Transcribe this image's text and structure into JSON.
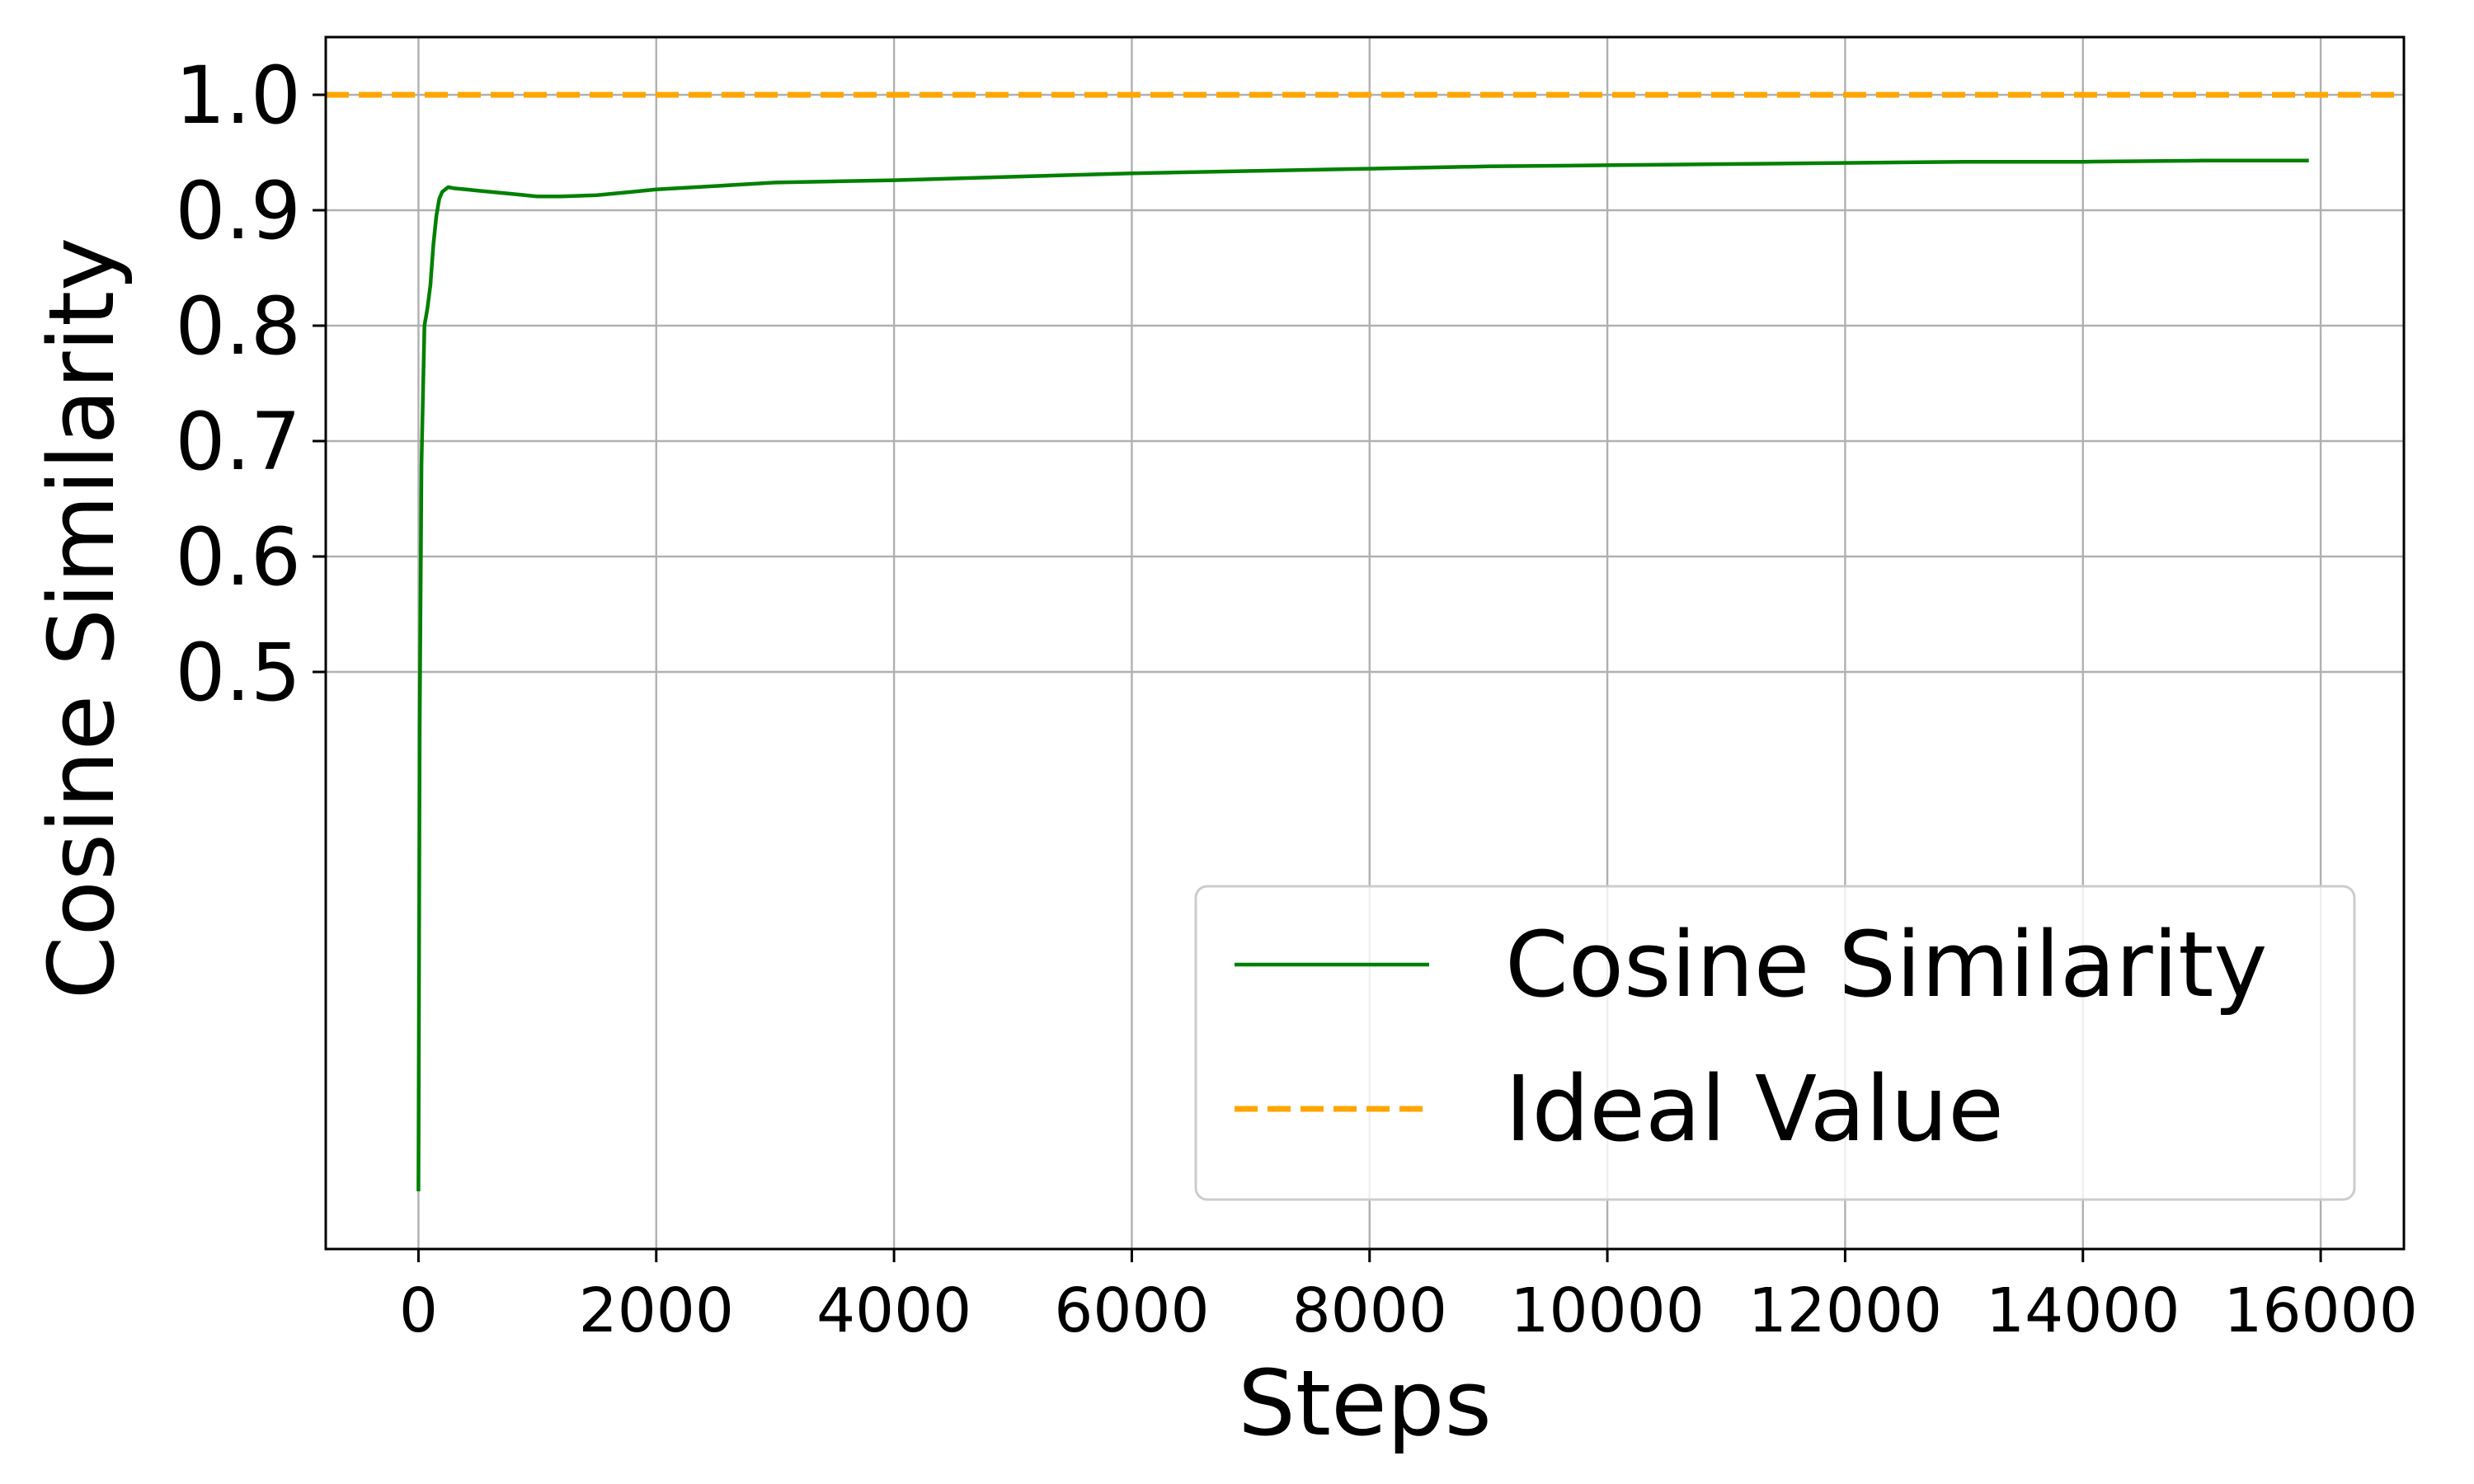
{
  "chart_data": {
    "type": "line",
    "title": "",
    "xlabel": "Steps",
    "ylabel": "Cosine Similarity",
    "xlim": [
      -780,
      16700
    ],
    "ylim": [
      0.0,
      1.05
    ],
    "xticks": [
      0,
      2000,
      4000,
      6000,
      8000,
      10000,
      12000,
      14000,
      16000
    ],
    "xtick_labels": [
      "0",
      "2000",
      "4000",
      "6000",
      "8000",
      "10000",
      "12000",
      "14000",
      "16000"
    ],
    "yticks": [
      0.5,
      0.6,
      0.7,
      0.8,
      0.9,
      1.0
    ],
    "ytick_labels": [
      "0.5",
      "0.6",
      "0.7",
      "0.8",
      "0.9",
      "1.0"
    ],
    "grid": true,
    "legend_position": "lower-right",
    "series": [
      {
        "name": "Cosine Similarity",
        "color": "#008000",
        "style": "solid",
        "x": [
          0,
          10,
          25,
          50,
          75,
          100,
          125,
          150,
          175,
          200,
          250,
          300,
          400,
          500,
          600,
          800,
          1000,
          1200,
          1500,
          2000,
          2500,
          3000,
          3500,
          4000,
          5000,
          6000,
          7000,
          8000,
          9000,
          10000,
          11000,
          12000,
          13000,
          14000,
          15000,
          15900
        ],
        "y": [
          0.05,
          0.45,
          0.68,
          0.8,
          0.815,
          0.835,
          0.87,
          0.895,
          0.91,
          0.916,
          0.92,
          0.919,
          0.918,
          0.917,
          0.916,
          0.914,
          0.912,
          0.912,
          0.913,
          0.918,
          0.921,
          0.924,
          0.925,
          0.926,
          0.929,
          0.932,
          0.934,
          0.936,
          0.938,
          0.939,
          0.94,
          0.941,
          0.942,
          0.942,
          0.943,
          0.943
        ]
      },
      {
        "name": "Ideal Value",
        "color": "#FFA500",
        "style": "dashed",
        "x": [
          -780,
          16700
        ],
        "y": [
          1.0,
          1.0
        ]
      }
    ]
  }
}
